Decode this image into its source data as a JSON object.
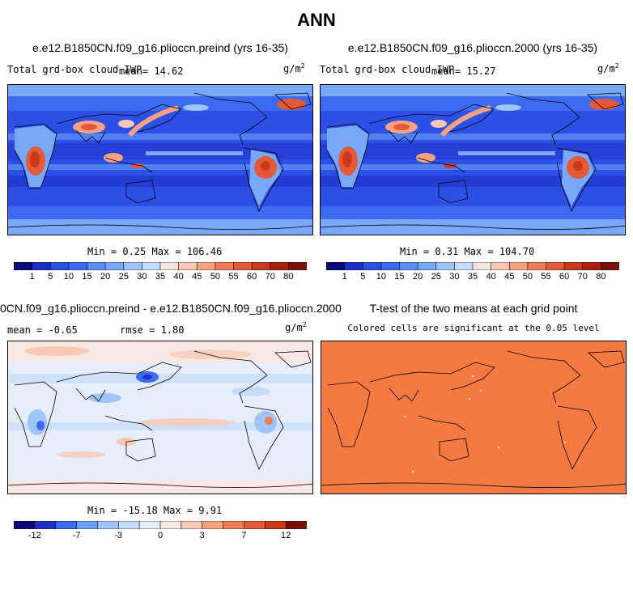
{
  "figure": {
    "title": "ANN"
  },
  "panels": [
    {
      "id": "preind",
      "title": "e.e12.B1850CN.f09_g16.plioccn.preind (yrs 16-35)",
      "variable": "Total grd-box cloud IWP",
      "mean_text": "mean=  14.62",
      "units": "g/m",
      "units_exp": "2",
      "stats": "Min =    0.25  Max = 106.46",
      "colorbar_labels": [
        "1",
        "5",
        "10",
        "15",
        "20",
        "25",
        "30",
        "35",
        "40",
        "45",
        "50",
        "55",
        "60",
        "70",
        "80"
      ]
    },
    {
      "id": "y2000",
      "title": "e.e12.B1850CN.f09_g16.plioccn.2000 (yrs 16-35)",
      "variable": "Total grd-box cloud IWP",
      "mean_text": "mean=  15.27",
      "units": "g/m",
      "units_exp": "2",
      "stats": "Min =    0.31  Max = 104.70",
      "colorbar_labels": [
        "1",
        "5",
        "10",
        "15",
        "20",
        "25",
        "30",
        "35",
        "40",
        "45",
        "50",
        "55",
        "60",
        "70",
        "80"
      ]
    },
    {
      "id": "diff",
      "title": "0CN.f09_g16.plioccn.preind - e.e12.B1850CN.f09_g16.plioccn.2000",
      "mean_text": "mean =  -0.65",
      "rmse_text": "rmse =   1.80",
      "units": "g/m",
      "units_exp": "2",
      "stats": "Min = -15.18  Max =    9.91",
      "colorbar_labels": [
        "-12",
        "-7",
        "-3",
        "0",
        "3",
        "7",
        "12"
      ]
    },
    {
      "id": "ttest",
      "title": "T-test of the two means at each grid point",
      "subtitle": "Colored cells are significant at the 0.05 level"
    }
  ],
  "chart_data": [
    {
      "type": "heatmap",
      "title": "e.e12.B1850CN.f09_g16.plioccn.preind (yrs 16-35)",
      "variable": "Total grd-box cloud IWP",
      "units": "g/m^2",
      "mean": 14.62,
      "min": 0.25,
      "max": 106.46,
      "levels": [
        1,
        5,
        10,
        15,
        20,
        25,
        30,
        35,
        40,
        45,
        50,
        55,
        60,
        70,
        80
      ],
      "colors": [
        "#0a0a78",
        "#1e2ec8",
        "#2c50e6",
        "#3c6af0",
        "#5a8cf5",
        "#7aa8f8",
        "#9ec4fa",
        "#c8dcfb",
        "#f3e6e0",
        "#f9c8b4",
        "#f6a282",
        "#f07c58",
        "#e45a36",
        "#cc3a1e",
        "#a82012",
        "#781008"
      ]
    },
    {
      "type": "heatmap",
      "title": "e.e12.B1850CN.f09_g16.plioccn.2000 (yrs 16-35)",
      "variable": "Total grd-box cloud IWP",
      "units": "g/m^2",
      "mean": 15.27,
      "min": 0.31,
      "max": 104.7,
      "levels": [
        1,
        5,
        10,
        15,
        20,
        25,
        30,
        35,
        40,
        45,
        50,
        55,
        60,
        70,
        80
      ]
    },
    {
      "type": "heatmap",
      "title": "0CN.f09_g16.plioccn.preind - e.e12.B1850CN.f09_g16.plioccn.2000",
      "units": "g/m^2",
      "mean": -0.65,
      "rmse": 1.8,
      "min": -15.18,
      "max": 9.91,
      "levels": [
        -12,
        -9,
        -7,
        -5,
        -3,
        -1,
        0,
        1,
        3,
        5,
        7,
        9,
        12
      ],
      "colors": [
        "#0a0a78",
        "#1e2ec8",
        "#3c6af0",
        "#6e9ef7",
        "#9ec4fa",
        "#c8dcfb",
        "#e6eefc",
        "#f8e8e2",
        "#f9c8b4",
        "#f6a282",
        "#f07c58",
        "#e45a36",
        "#cc3a1e",
        "#781008"
      ]
    },
    {
      "type": "heatmap",
      "title": "T-test of the two means at each grid point",
      "subtitle": "Colored cells are significant at the 0.05 level",
      "significant_color": "#f47a42"
    }
  ]
}
